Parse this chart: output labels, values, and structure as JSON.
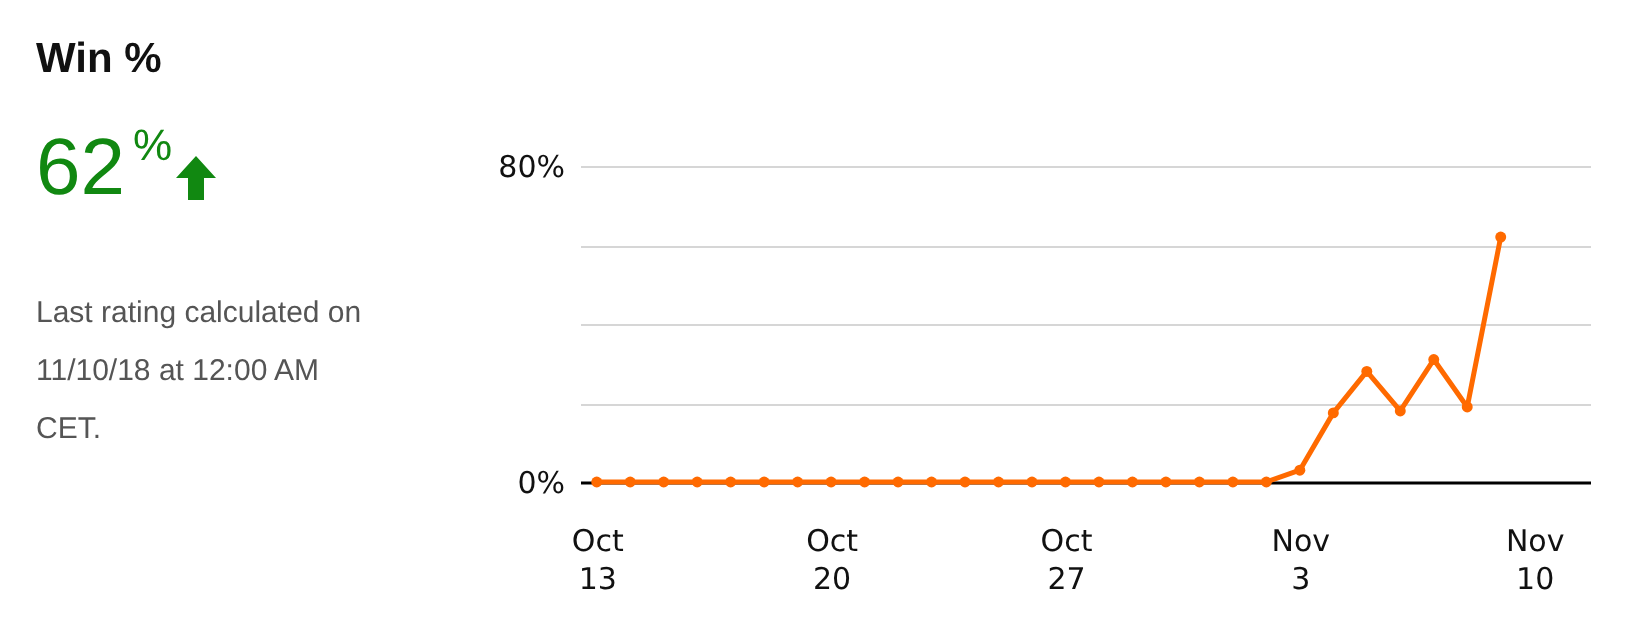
{
  "chart_data": [
    {
      "type": "other",
      "title": "Win %",
      "annotations": [
        "62$^{%}$",
        "Last rating calculated on 11/10/18 at 12:00 AM CET."
      ]
    },
    {
      "type": "line",
      "x": [
        "--10-13",
        "--10-14",
        "--10-15",
        "--10-16",
        "--10-17",
        "--10-18",
        "--10-19",
        "--10-20",
        "--10-21",
        "--10-22",
        "--10-23",
        "--10-24",
        "--10-25",
        "--10-26",
        "--10-27",
        "--10-28",
        "--10-29",
        "--10-30",
        "--10-31",
        "--11-01",
        "--11-02",
        "--11-03",
        "--11-04",
        "--11-05",
        "--11-06",
        "--11-07",
        "--11-08",
        "--11-09"
      ],
      "series": [
        {
          "color": "#ff6a00",
          "values": [
            0,
            0,
            0,
            0,
            0,
            0,
            0,
            0,
            0,
            0,
            0,
            0,
            0,
            0,
            0,
            0,
            0,
            0,
            0,
            0,
            0,
            3,
            17.5,
            28,
            18,
            31,
            19,
            62
          ]
        }
      ],
      "xlim": [
        "--10-12T12:00",
        "--11-11T16:00"
      ],
      "xticks": [
        {
          "value": "--10-13",
          "label": "Oct 13"
        },
        {
          "value": "--10-20",
          "label": "Oct 20"
        },
        {
          "value": "--10-27",
          "label": "Oct 27"
        },
        {
          "value": "--11-03",
          "label": "Nov 3"
        },
        {
          "value": "--11-10",
          "label": "Nov 10"
        }
      ],
      "ylim": [
        0,
        80
      ],
      "yticks": [
        {
          "value": 0,
          "label": "0%"
        },
        {
          "value": 20,
          "label": null
        },
        {
          "value": 40,
          "label": null
        },
        {
          "value": 60,
          "label": null
        },
        {
          "value": 80,
          "label": "80%"
        }
      ],
      "grid": "y",
      "marker": "circle",
      "line_style": "solid",
      "legend": false
    }
  ]
}
